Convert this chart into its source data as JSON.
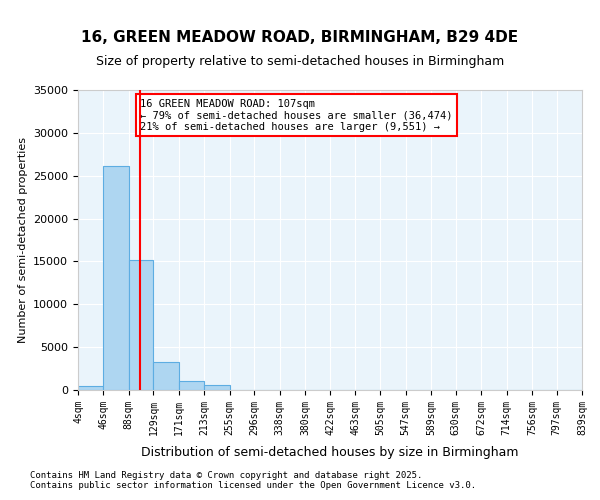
{
  "title": "16, GREEN MEADOW ROAD, BIRMINGHAM, B29 4DE",
  "subtitle": "Size of property relative to semi-detached houses in Birmingham",
  "xlabel": "Distribution of semi-detached houses by size in Birmingham",
  "ylabel": "Number of semi-detached properties",
  "bin_labels": [
    "4sqm",
    "46sqm",
    "88sqm",
    "129sqm",
    "171sqm",
    "213sqm",
    "255sqm",
    "296sqm",
    "338sqm",
    "380sqm",
    "422sqm",
    "463sqm",
    "505sqm",
    "547sqm",
    "589sqm",
    "630sqm",
    "672sqm",
    "714sqm",
    "756sqm",
    "797sqm",
    "839sqm"
  ],
  "bin_edges": [
    4,
    46,
    88,
    129,
    171,
    213,
    255,
    296,
    338,
    380,
    422,
    463,
    505,
    547,
    589,
    630,
    672,
    714,
    756,
    797,
    839
  ],
  "bar_values": [
    500,
    26100,
    15200,
    3300,
    1100,
    600,
    0,
    0,
    0,
    0,
    0,
    0,
    0,
    0,
    0,
    0,
    0,
    0,
    0,
    0
  ],
  "ylim": [
    0,
    35000
  ],
  "bar_color": "#AED6F1",
  "bar_edge_color": "#5DADE2",
  "property_line_x": 107,
  "property_line_color": "red",
  "annotation_text": "16 GREEN MEADOW ROAD: 107sqm\n← 79% of semi-detached houses are smaller (36,474)\n21% of semi-detached houses are larger (9,551) →",
  "annotation_box_color": "red",
  "footer_line1": "Contains HM Land Registry data © Crown copyright and database right 2025.",
  "footer_line2": "Contains public sector information licensed under the Open Government Licence v3.0.",
  "bg_color": "#EAF4FB",
  "grid_color": "white",
  "yticks": [
    0,
    5000,
    10000,
    15000,
    20000,
    25000,
    30000,
    35000
  ]
}
